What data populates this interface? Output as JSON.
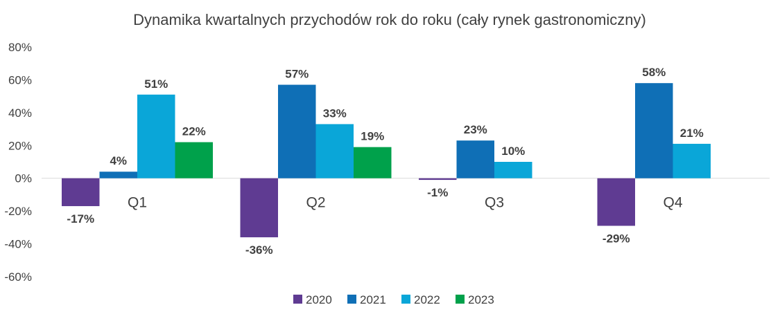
{
  "chart_data": {
    "type": "bar",
    "title": "Dynamika kwartalnych przychodów rok do roku (cały rynek gastronomiczny)",
    "xlabel": "",
    "ylabel": "",
    "categories": [
      "Q1",
      "Q2",
      "Q3",
      "Q4"
    ],
    "series": [
      {
        "name": "2020",
        "color": "#5f3b92",
        "values": [
          -17,
          -36,
          -1,
          -29
        ],
        "labels": [
          "-17%",
          "-36%",
          "-1%",
          "-29%"
        ]
      },
      {
        "name": "2021",
        "color": "#0f6fb6",
        "values": [
          4,
          57,
          23,
          58
        ],
        "labels": [
          "4%",
          "57%",
          "23%",
          "58%"
        ]
      },
      {
        "name": "2022",
        "color": "#0aa6d8",
        "values": [
          51,
          33,
          10,
          21
        ],
        "labels": [
          "51%",
          "33%",
          "10%",
          "21%"
        ]
      },
      {
        "name": "2023",
        "color": "#00a14b",
        "values": [
          22,
          19,
          null,
          null
        ],
        "labels": [
          "22%",
          "19%",
          null,
          null
        ]
      }
    ],
    "ylim": [
      -60,
      80
    ],
    "yticks": [
      80,
      60,
      40,
      20,
      0,
      -20,
      -40,
      -60
    ],
    "ytick_labels": [
      "80%",
      "60%",
      "40%",
      "20%",
      "0%",
      "-20%",
      "-40%",
      "-60%"
    ],
    "grid": false,
    "legend_position": "bottom",
    "zero_line_color": "#d9d9d9"
  }
}
